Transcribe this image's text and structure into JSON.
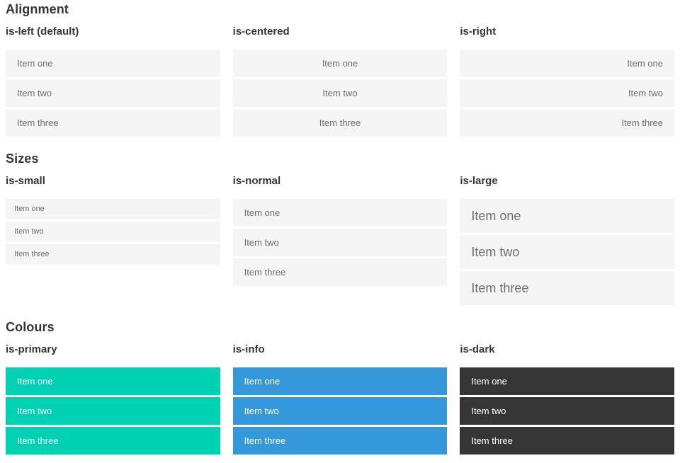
{
  "sections": [
    {
      "title": "Alignment",
      "groups": [
        {
          "label": "is-left (default)",
          "variant": "left",
          "items": [
            "Item one",
            "Item two",
            "Item three"
          ]
        },
        {
          "label": "is-centered",
          "variant": "centered",
          "items": [
            "Item one",
            "Item two",
            "Item three"
          ]
        },
        {
          "label": "is-right",
          "variant": "right",
          "items": [
            "Item one",
            "Item two",
            "Item three"
          ]
        }
      ]
    },
    {
      "title": "Sizes",
      "groups": [
        {
          "label": "is-small",
          "variant": "small",
          "items": [
            "Item one",
            "Item two",
            "Item three"
          ]
        },
        {
          "label": "is-normal",
          "variant": "normal",
          "items": [
            "Item one",
            "Item two",
            "Item three"
          ]
        },
        {
          "label": "is-large",
          "variant": "large",
          "items": [
            "Item one",
            "Item two",
            "Item three"
          ]
        }
      ]
    },
    {
      "title": "Colours",
      "groups": [
        {
          "label": "is-primary",
          "variant": "primary",
          "items": [
            "Item one",
            "Item two",
            "Item three"
          ]
        },
        {
          "label": "is-info",
          "variant": "info",
          "items": [
            "Item one",
            "Item two",
            "Item three"
          ]
        },
        {
          "label": "is-dark",
          "variant": "dark",
          "items": [
            "Item one",
            "Item two",
            "Item three"
          ]
        }
      ]
    }
  ],
  "colors": {
    "primary": "#00d1b2",
    "info": "#3498db",
    "dark": "#363636",
    "item_bg": "#f5f5f5",
    "item_text": "#6e6e6e",
    "heading": "#363636"
  }
}
